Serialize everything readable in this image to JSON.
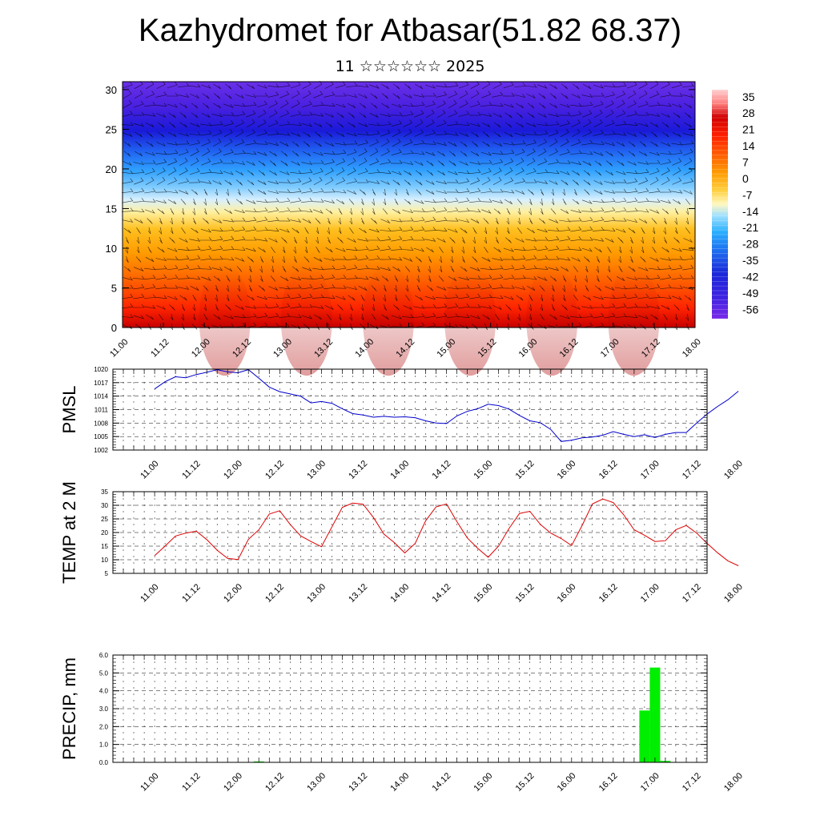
{
  "header": {
    "title": "Kazhydromet for Atbasar(51.82 68.37)",
    "subtitle": "11 ☆☆☆☆☆☆ 2025"
  },
  "colors": {
    "pmsl_line": "#0000cc",
    "temp_line": "#dd0000",
    "precip_bar": "#00ee00",
    "grid": "#000000"
  },
  "chart_data": [
    {
      "type": "heatmap",
      "name_hint": "cross-section",
      "xlabel": "",
      "ylabel": "",
      "x_tick_labels": [
        "11.00",
        "11.12",
        "12.00",
        "12.12",
        "13.00",
        "13.12",
        "14.00",
        "14.12",
        "15.00",
        "15.12",
        "16.00",
        "16.12",
        "17.00",
        "17.12",
        "18.00"
      ],
      "y_tick_labels": [
        "0",
        "5",
        "10",
        "15",
        "20",
        "25",
        "30"
      ],
      "ylim": [
        0,
        31
      ],
      "colorbar_labels": [
        "35",
        "28",
        "21",
        "14",
        "7",
        "0",
        "-7",
        "-14",
        "-21",
        "-28",
        "-35",
        "-42",
        "-49",
        "-56"
      ],
      "colorbar_range": [
        -60,
        38
      ],
      "overlay": "wind barbs"
    },
    {
      "type": "line",
      "ylabel": "PMSL",
      "ylim": [
        1002,
        1020
      ],
      "y_tick_labels": [
        "1020",
        "1017",
        "1014",
        "1011",
        "1008",
        "1005",
        "1002"
      ],
      "x_tick_labels": [
        "11.00",
        "11.12",
        "12.00",
        "12.12",
        "13.00",
        "13.12",
        "14.00",
        "14.12",
        "15.00",
        "15.12",
        "16.00",
        "16.12",
        "17.00",
        "17.12",
        "18.00"
      ],
      "x": [
        0,
        3,
        6,
        9,
        12,
        15,
        18,
        21,
        24,
        27,
        30,
        33,
        36,
        39,
        42,
        45,
        48,
        51,
        54,
        57,
        60,
        63,
        66,
        69,
        72,
        75,
        78,
        81,
        84,
        87,
        90,
        93,
        96,
        99,
        102,
        105,
        108,
        111,
        114,
        117,
        120,
        123,
        126,
        129,
        132,
        135,
        138,
        141,
        144,
        147,
        150,
        153,
        156,
        159,
        162,
        165,
        168
      ],
      "values": [
        1015.6,
        1017.2,
        1018.3,
        1018.1,
        1018.8,
        1019.3,
        1019.9,
        1019.4,
        1019.2,
        1019.9,
        1018.0,
        1016.0,
        1015.0,
        1014.5,
        1014.0,
        1012.5,
        1012.8,
        1012.4,
        1011.2,
        1010.1,
        1009.8,
        1009.3,
        1009.5,
        1009.3,
        1009.4,
        1009.2,
        1008.5,
        1008.0,
        1007.9,
        1009.6,
        1010.6,
        1011.2,
        1012.2,
        1011.9,
        1011.1,
        1009.7,
        1008.5,
        1008.1,
        1006.6,
        1003.9,
        1004.2,
        1004.7,
        1004.9,
        1005.3,
        1006.1,
        1005.5,
        1005.0,
        1005.4,
        1004.8,
        1005.5,
        1005.9,
        1005.9,
        1008.0,
        1010.0,
        1011.7,
        1013.2,
        1015.1
      ]
    },
    {
      "type": "line",
      "ylabel": "TEMP at 2 M",
      "ylim": [
        5,
        35
      ],
      "y_tick_labels": [
        "35",
        "30",
        "25",
        "20",
        "15",
        "10",
        "5"
      ],
      "x_tick_labels": [
        "11.00",
        "11.12",
        "12.00",
        "12.12",
        "13.00",
        "13.12",
        "14.00",
        "14.12",
        "15.00",
        "15.12",
        "16.00",
        "16.12",
        "17.00",
        "17.12",
        "18.00"
      ],
      "x": [
        0,
        3,
        6,
        9,
        12,
        15,
        18,
        21,
        24,
        27,
        30,
        33,
        36,
        39,
        42,
        45,
        48,
        51,
        54,
        57,
        60,
        63,
        66,
        69,
        72,
        75,
        78,
        81,
        84,
        87,
        90,
        93,
        96,
        99,
        102,
        105,
        108,
        111,
        114,
        117,
        120,
        123,
        126,
        129,
        132,
        135,
        138,
        141,
        144,
        147,
        150,
        153,
        156,
        159,
        162,
        165,
        168
      ],
      "values": [
        11.5,
        15.0,
        18.7,
        19.8,
        20.5,
        17.4,
        13.5,
        10.5,
        10.1,
        17.5,
        21.0,
        26.8,
        28.0,
        23.0,
        18.8,
        16.7,
        14.8,
        22.0,
        29.2,
        30.8,
        30.4,
        25.5,
        19.4,
        16.3,
        12.5,
        16.0,
        24.3,
        29.4,
        30.5,
        24.0,
        18.0,
        14.2,
        10.9,
        15.0,
        21.5,
        27.0,
        27.8,
        23.0,
        19.8,
        17.8,
        15.2,
        22.5,
        30.5,
        32.3,
        31.0,
        26.5,
        21.0,
        19.0,
        16.7,
        17.0,
        21.0,
        22.6,
        19.8,
        16.0,
        12.6,
        9.6,
        7.8
      ]
    },
    {
      "type": "bar",
      "ylabel": "PRECIP, mm",
      "ylim": [
        0,
        6
      ],
      "y_tick_labels": [
        "6.0",
        "5.0",
        "4.0",
        "3.0",
        "2.0",
        "1.0",
        "0.0"
      ],
      "x_tick_labels": [
        "11.00",
        "11.12",
        "12.00",
        "12.12",
        "13.00",
        "13.12",
        "14.00",
        "14.12",
        "15.00",
        "15.12",
        "16.00",
        "16.12",
        "17.00",
        "17.12",
        "18.00"
      ],
      "x": [
        30,
        141,
        144,
        147
      ],
      "values": [
        0.05,
        2.9,
        5.3,
        0.08
      ]
    }
  ]
}
